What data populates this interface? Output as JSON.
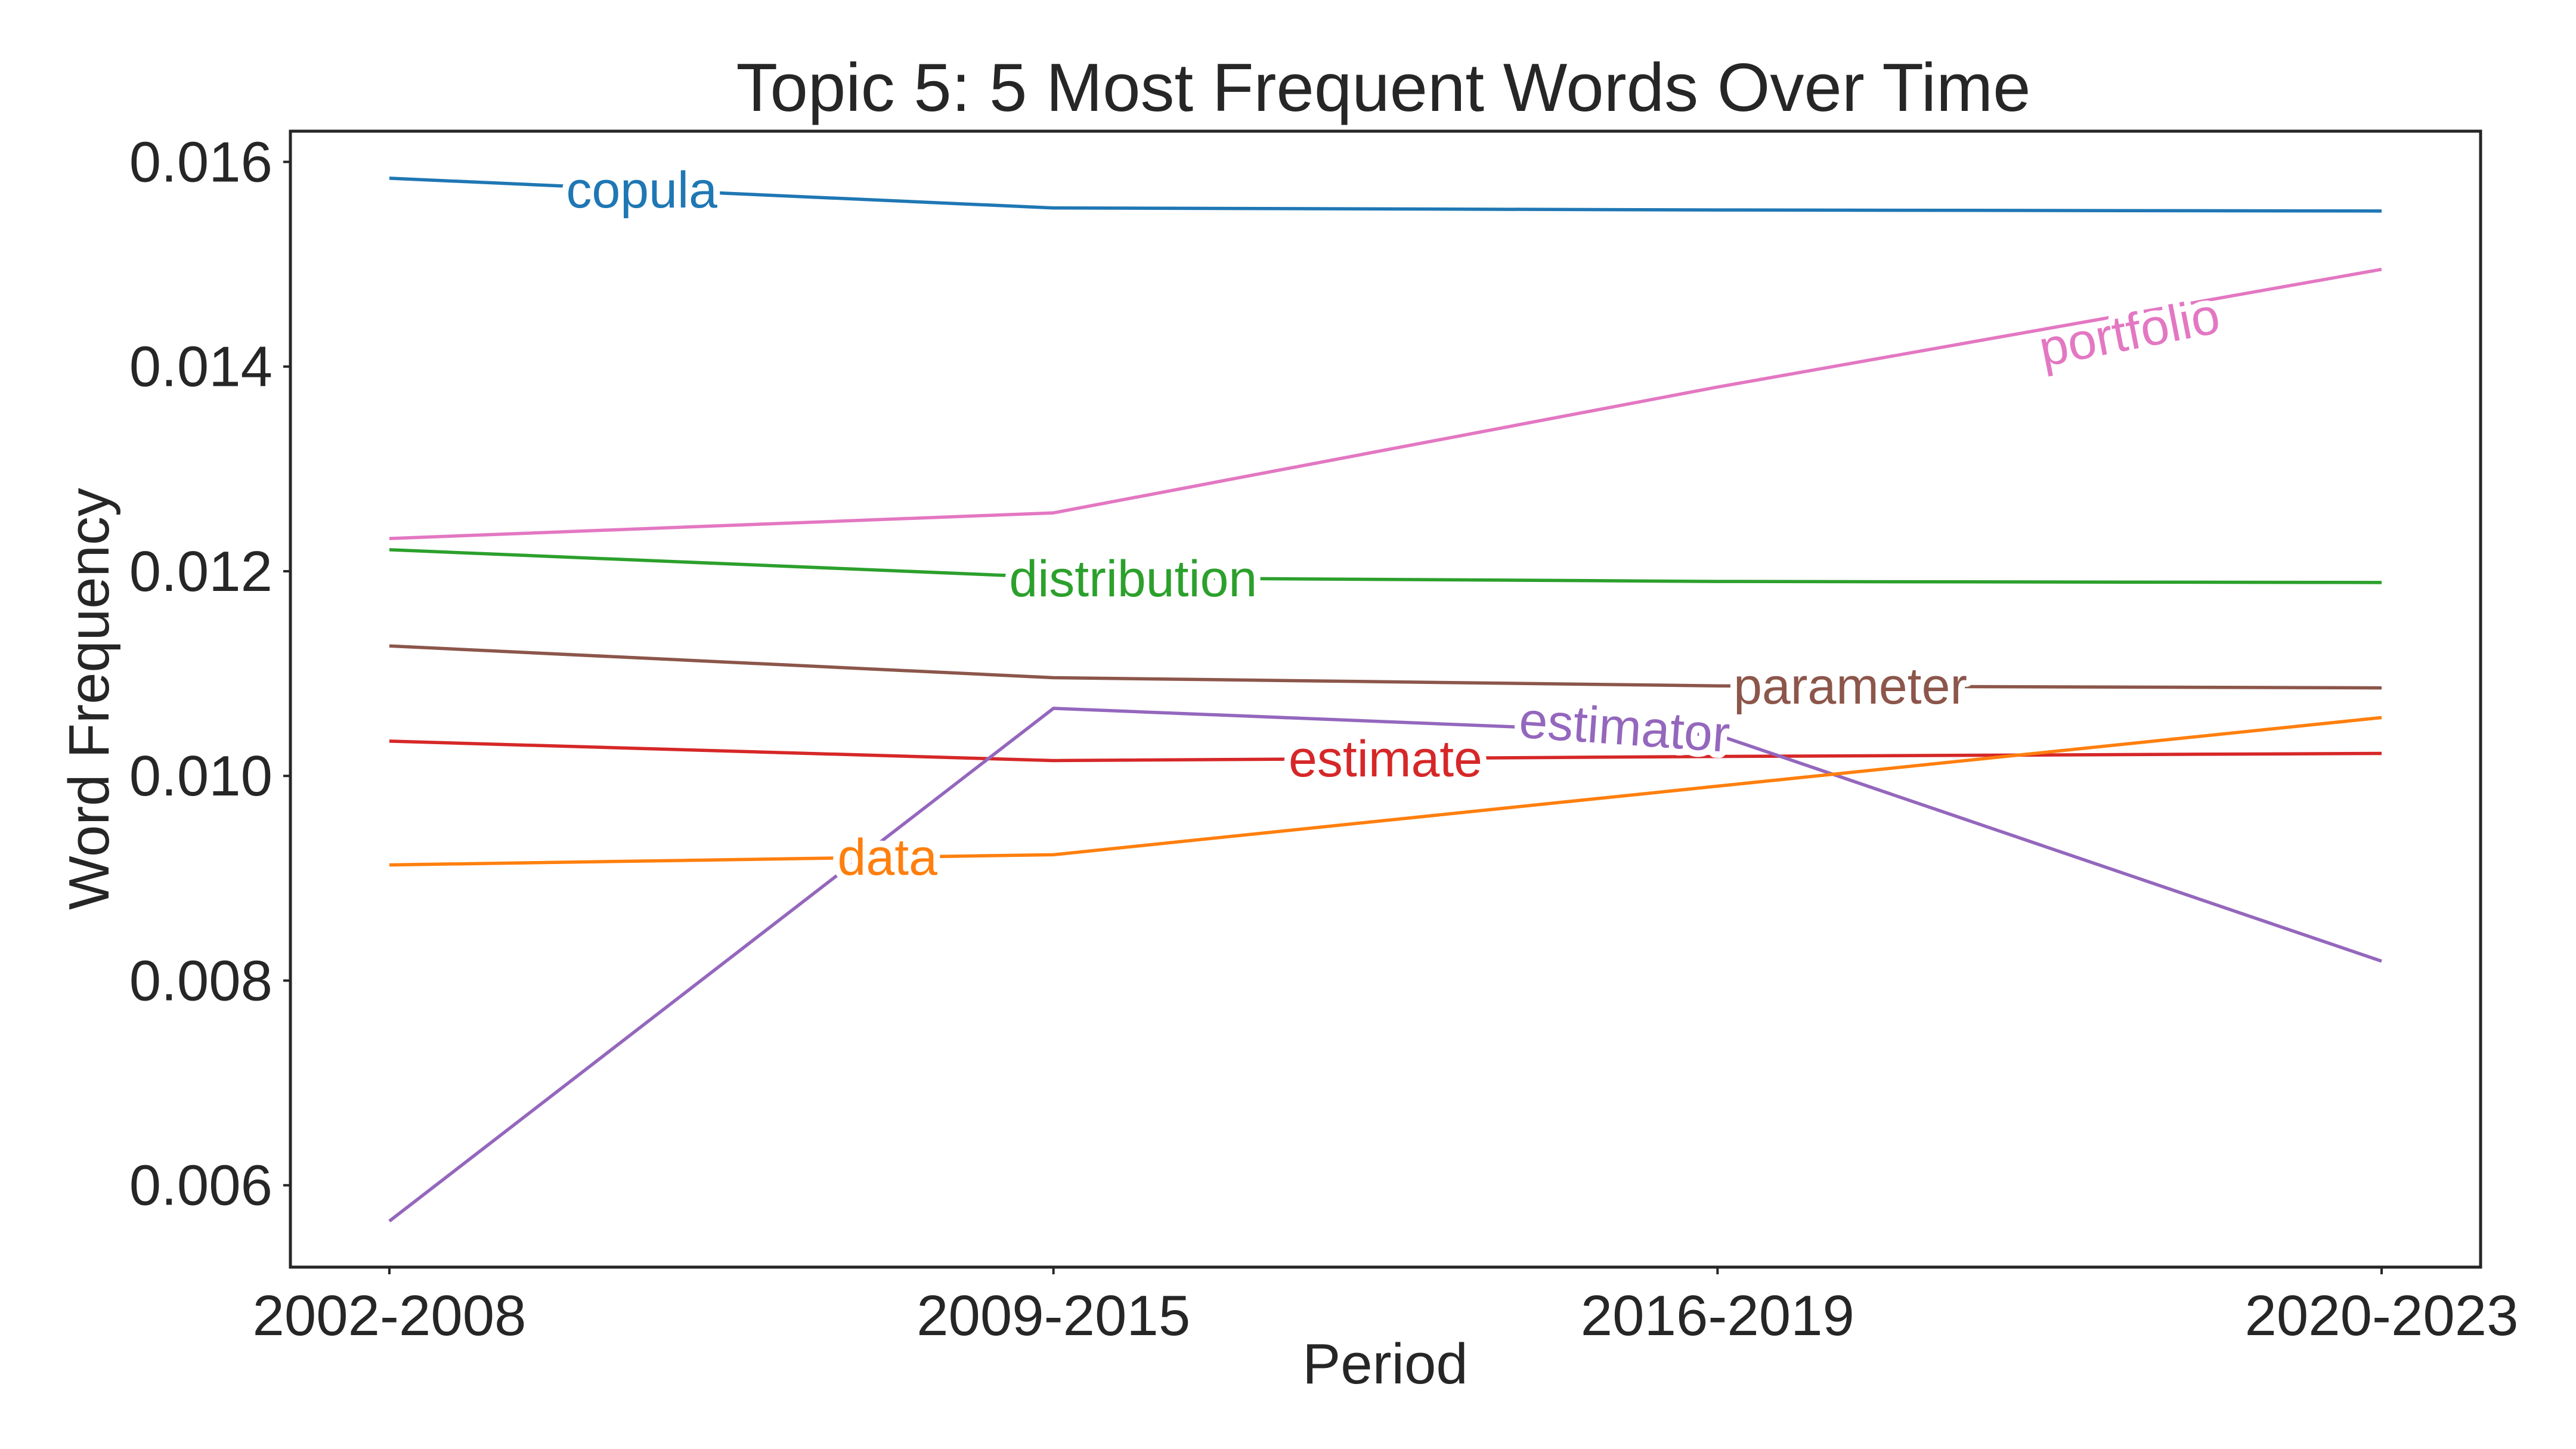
{
  "chart_data": {
    "type": "line",
    "title": "Topic 5: 5 Most Frequent Words Over Time",
    "xlabel": "Period",
    "ylabel": "Word Frequency",
    "categories": [
      "2002-2008",
      "2009-2015",
      "2016-2019",
      "2020-2023"
    ],
    "ylim": [
      0.0052,
      0.0163
    ],
    "yticks": [
      0.006,
      0.008,
      0.01,
      0.012,
      0.014,
      0.016
    ],
    "ytick_labels": [
      "0.006",
      "0.008",
      "0.010",
      "0.012",
      "0.014",
      "0.016"
    ],
    "grid": false,
    "legend": "none (inline labels on lines)",
    "series": [
      {
        "name": "copula",
        "color": "#1f77b4",
        "values": [
          0.01584,
          0.01555,
          0.01553,
          0.01552
        ]
      },
      {
        "name": "portfolio",
        "color": "#e377c2",
        "values": [
          0.01232,
          0.01257,
          0.0138,
          0.01495
        ]
      },
      {
        "name": "distribution",
        "color": "#2ca02c",
        "values": [
          0.01221,
          0.01194,
          0.0119,
          0.01189
        ]
      },
      {
        "name": "parameter",
        "color": "#8c564b",
        "values": [
          0.01127,
          0.01096,
          0.01088,
          0.01086
        ]
      },
      {
        "name": "estimate",
        "color": "#d62728",
        "values": [
          0.01034,
          0.01015,
          0.01019,
          0.01022
        ]
      },
      {
        "name": "estimator",
        "color": "#9467bd",
        "values": [
          0.00565,
          0.01066,
          0.0104,
          0.00819
        ]
      },
      {
        "name": "data",
        "color": "#ff7f0e",
        "values": [
          0.00913,
          0.00923,
          0.0099,
          0.01057
        ]
      }
    ],
    "inline_labels": [
      {
        "series": "copula",
        "x": 0.38,
        "y": 0.01573,
        "angle": 0
      },
      {
        "series": "portfolio",
        "x": 2.62,
        "y": 0.01434,
        "angle": -11
      },
      {
        "series": "distribution",
        "x": 1.12,
        "y": 0.01193,
        "angle": 0
      },
      {
        "series": "parameter",
        "x": 2.2,
        "y": 0.01088,
        "angle": 0
      },
      {
        "series": "estimate",
        "x": 1.5,
        "y": 0.01017,
        "angle": 0
      },
      {
        "series": "estimator",
        "x": 1.86,
        "y": 0.01048,
        "angle": 4
      },
      {
        "series": "data",
        "x": 0.75,
        "y": 0.00921,
        "angle": 0
      }
    ]
  }
}
